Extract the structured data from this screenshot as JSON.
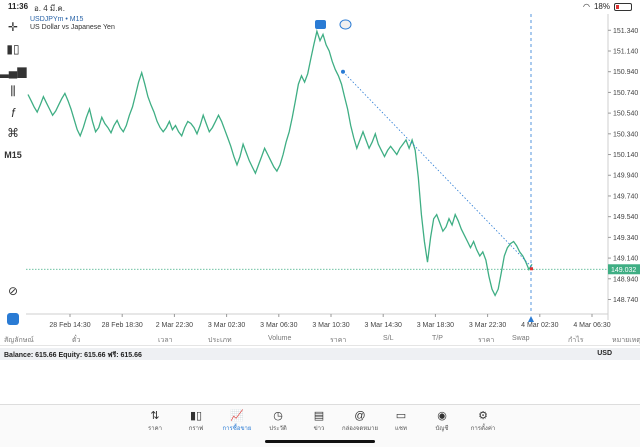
{
  "status_bar": {
    "time": "11:36",
    "date": "อ. 4 มี.ค.",
    "battery": "18%"
  },
  "toolbar": {
    "timeframe": "M15"
  },
  "chart_header": {
    "symbol": "USDJPYm",
    "timeframe": "M15",
    "description": "US Dollar vs Japanese Yen"
  },
  "chart_data": {
    "type": "line",
    "yticks": [
      "151.340",
      "151.140",
      "150.940",
      "150.740",
      "150.540",
      "150.340",
      "150.140",
      "149.940",
      "149.740",
      "149.540",
      "149.340",
      "149.140",
      "148.940",
      "148.740"
    ],
    "xticks": [
      "28 Feb 14:30",
      "28 Feb 18:30",
      "2 Mar 22:30",
      "3 Mar 02:30",
      "3 Mar 06:30",
      "3 Mar 10:30",
      "3 Mar 14:30",
      "3 Mar 18:30",
      "3 Mar 22:30",
      "4 Mar 02:30",
      "4 Mar 06:30"
    ],
    "current_price": "149.032",
    "ylim": [
      148.6,
      151.42
    ],
    "values": [
      150.72,
      150.66,
      150.6,
      150.55,
      150.62,
      150.7,
      150.64,
      150.58,
      150.52,
      150.56,
      150.62,
      150.68,
      150.73,
      150.66,
      150.58,
      150.48,
      150.38,
      150.32,
      150.4,
      150.5,
      150.58,
      150.46,
      150.36,
      150.4,
      150.5,
      150.44,
      150.4,
      150.35,
      150.42,
      150.47,
      150.4,
      150.36,
      150.42,
      150.52,
      150.6,
      150.72,
      150.84,
      150.93,
      150.82,
      150.7,
      150.62,
      150.55,
      150.46,
      150.4,
      150.36,
      150.4,
      150.46,
      150.38,
      150.42,
      150.36,
      150.32,
      150.4,
      150.46,
      150.44,
      150.4,
      150.34,
      150.42,
      150.52,
      150.44,
      150.36,
      150.4,
      150.46,
      150.52,
      150.46,
      150.38,
      150.3,
      150.22,
      150.12,
      150.04,
      150.12,
      150.24,
      150.16,
      150.08,
      150.02,
      149.96,
      150.04,
      150.12,
      150.2,
      150.14,
      150.08,
      150.02,
      149.98,
      150.04,
      150.14,
      150.26,
      150.36,
      150.5,
      150.66,
      150.82,
      150.9,
      150.84,
      150.92,
      151.06,
      151.2,
      151.33,
      151.24,
      151.3,
      151.2,
      151.14,
      151.04,
      150.96,
      150.9,
      150.82,
      150.7,
      150.58,
      150.42,
      150.3,
      150.2,
      150.28,
      150.36,
      150.28,
      150.2,
      150.26,
      150.34,
      150.24,
      150.18,
      150.12,
      150.18,
      150.22,
      150.18,
      150.14,
      150.2,
      150.24,
      150.28,
      150.2,
      150.28,
      150.18,
      149.92,
      149.56,
      149.3,
      149.1,
      149.34,
      149.52,
      149.56,
      149.48,
      149.4,
      149.44,
      149.52,
      149.46,
      149.56,
      149.5,
      149.42,
      149.36,
      149.3,
      149.24,
      149.3,
      149.22,
      149.16,
      149.2,
      149.12,
      148.96,
      148.84,
      148.78,
      148.84,
      149.0,
      149.16,
      149.24,
      149.28,
      149.3,
      149.26,
      149.2,
      149.16,
      149.1,
      149.03,
      149.08
    ]
  },
  "columns": [
    "สัญลักษณ์",
    "ตั๋ว",
    "เวลา",
    "ประเภท",
    "Volume",
    "ราคา",
    "S/L",
    "T/P",
    "ราคา",
    "Swap",
    "กำไร",
    "หมายเหตุ"
  ],
  "balance": {
    "text": "Balance: 615.66  Equity: 615.66  ฟรี: 615.66",
    "currency": "USD"
  },
  "nav": [
    {
      "label": "ราคา",
      "icon": "quotes-icon"
    },
    {
      "label": "กราฟ",
      "icon": "chart-icon"
    },
    {
      "label": "การซื้อขาย",
      "icon": "trade-icon",
      "active": true
    },
    {
      "label": "ประวัติ",
      "icon": "history-icon"
    },
    {
      "label": "ข่าว",
      "icon": "news-icon"
    },
    {
      "label": "กล่องจดหมาย",
      "icon": "mailbox-icon"
    },
    {
      "label": "แชท",
      "icon": "chat-icon"
    },
    {
      "label": "บัญชี",
      "icon": "account-icon"
    },
    {
      "label": "การตั้งค่า",
      "icon": "settings-icon"
    }
  ],
  "colors": {
    "line": "#3fae84",
    "accent": "#2a7bd4",
    "price_tag": "#3fae84"
  }
}
